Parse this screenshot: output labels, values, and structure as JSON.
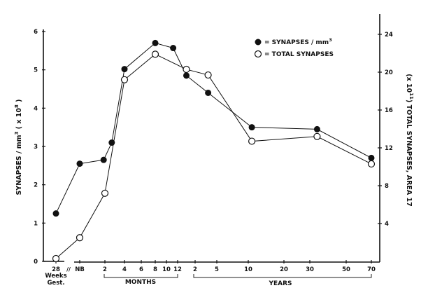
{
  "chart_data": {
    "type": "line",
    "title": "",
    "ylabel": "SYNAPSES / mm³ ( x 10⁸ )",
    "ylabel_parts": {
      "main": "SYNAPSES / mm",
      "sup": "3",
      "tail": " ( x 10",
      "sup2": "8",
      "end": " )"
    },
    "y2label_parts": {
      "pre": "(x 10",
      "sup": "11",
      "post": ") TOTAL SYNAPSES, AREA 17"
    },
    "ylim": [
      0,
      6
    ],
    "y2lim": [
      0,
      24
    ],
    "yticks": [
      "0",
      "1",
      "2",
      "3",
      "4",
      "5",
      "6"
    ],
    "y2ticks": [
      "4",
      "8",
      "12",
      "16",
      "20",
      "24"
    ],
    "x_ticks": [
      "28",
      "NB",
      "2",
      "4",
      "6",
      "8",
      "10",
      "12",
      "2",
      "5",
      "10",
      "20",
      "30",
      "50",
      "70"
    ],
    "x_extra": {
      "weeks": "Weeks",
      "gest": "Gest.",
      "break": "//"
    },
    "x_groups": {
      "months": "MONTHS",
      "years": "YEARS"
    },
    "x_note": "x values are positions on the ordinal age-tick scale (0 = 28 weeks gest., 1 = NB, 2–7 = 2–12 months, 8–14 = 2–70 years)",
    "legend": {
      "filled": "= SYNAPSES / mm",
      "filled_sup": "3",
      "open": "= TOTAL SYNAPSES",
      "placement": "top-center-right"
    },
    "series": [
      {
        "name": "SYNAPSES / mm3",
        "axis": "left",
        "marker": "filled",
        "x": [
          0,
          1,
          1.95,
          2.35,
          3,
          5,
          6.6,
          7.5,
          8.6,
          10.1,
          12.2,
          14
        ],
        "y": [
          1.25,
          2.55,
          2.65,
          3.1,
          5.02,
          5.7,
          5.57,
          4.85,
          4.4,
          3.5,
          3.45,
          2.7
        ]
      },
      {
        "name": "TOTAL SYNAPSES",
        "axis": "right",
        "marker": "open",
        "x": [
          0,
          1,
          2,
          3,
          5,
          7.5,
          8.6,
          10.1,
          12.2,
          14
        ],
        "y": [
          0.3,
          2.5,
          7.2,
          19.2,
          21.9,
          20.3,
          19.7,
          12.7,
          13.2,
          10.3
        ]
      }
    ]
  }
}
